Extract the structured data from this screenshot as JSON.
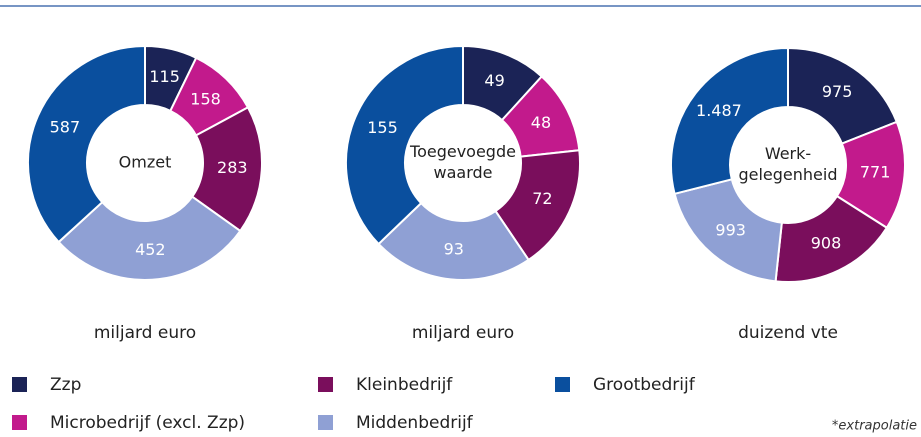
{
  "chart_data": [
    {
      "type": "pie",
      "center_label": [
        "Omzet"
      ],
      "subtitle": "miljard euro",
      "categories": [
        "Zzp",
        "Microbedrijf (excl. Zzp)",
        "Kleinbedrijf",
        "Middenbedrijf",
        "Grootbedrijf"
      ],
      "values": [
        115,
        158,
        283,
        452,
        587
      ],
      "colors": [
        "#1b2356",
        "#c21a8c",
        "#7a0e5c",
        "#8fa0d4",
        "#0a4f9e"
      ]
    },
    {
      "type": "pie",
      "center_label": [
        "Toegevoegde",
        "waarde"
      ],
      "subtitle": "miljard euro",
      "categories": [
        "Zzp",
        "Microbedrijf (excl. Zzp)",
        "Kleinbedrijf",
        "Middenbedrijf",
        "Grootbedrijf"
      ],
      "values": [
        49,
        48,
        72,
        93,
        155
      ],
      "colors": [
        "#1b2356",
        "#c21a8c",
        "#7a0e5c",
        "#8fa0d4",
        "#0a4f9e"
      ]
    },
    {
      "type": "pie",
      "center_label": [
        "Werk-",
        "gelegenheid"
      ],
      "subtitle": "duizend vte",
      "categories": [
        "Zzp",
        "Microbedrijf (excl. Zzp)",
        "Kleinbedrijf",
        "Middenbedrijf",
        "Grootbedrijf"
      ],
      "values": [
        975,
        771,
        908,
        993,
        1487
      ],
      "value_labels": [
        "975",
        "771",
        "908",
        "993",
        "1.487"
      ],
      "colors": [
        "#1b2356",
        "#c21a8c",
        "#7a0e5c",
        "#8fa0d4",
        "#0a4f9e"
      ]
    }
  ],
  "footnote": "*extrapolatie"
}
